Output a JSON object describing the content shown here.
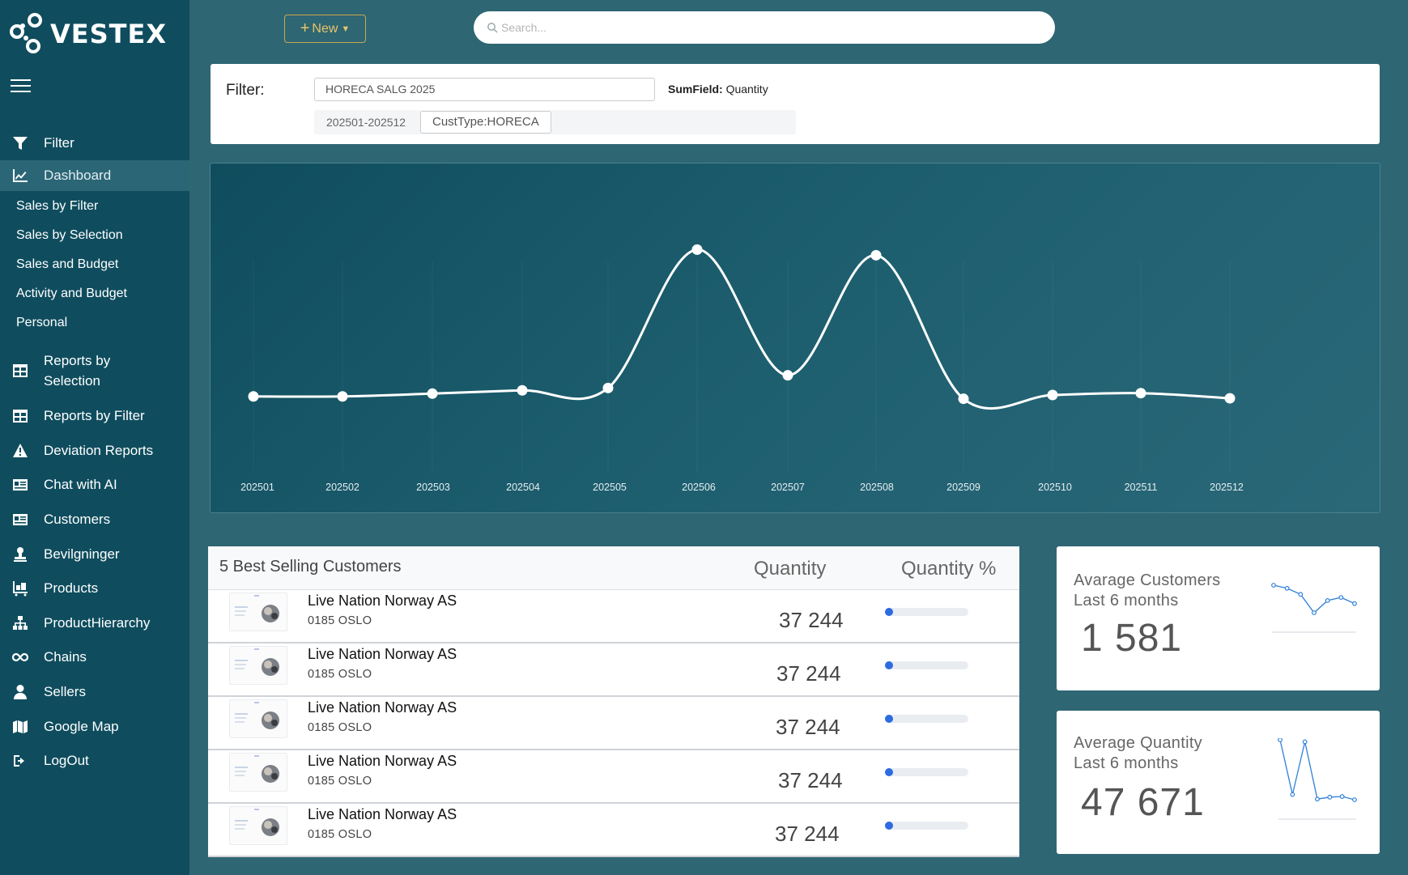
{
  "brand": {
    "name": "VESTEX"
  },
  "sidebar": {
    "items": [
      {
        "label": "Filter",
        "icon": "funnel-icon"
      },
      {
        "label": "Dashboard",
        "icon": "line-chart-icon"
      },
      {
        "label": "Reports by Selection",
        "icon": "table-icon"
      },
      {
        "label": "Reports by Filter",
        "icon": "table-icon"
      },
      {
        "label": "Deviation Reports",
        "icon": "warning-icon"
      },
      {
        "label": "Chat with AI",
        "icon": "id-card-icon"
      },
      {
        "label": "Customers",
        "icon": "id-card-icon"
      },
      {
        "label": "Bevilgninger",
        "icon": "stamp-icon"
      },
      {
        "label": "Products",
        "icon": "pallet-icon"
      },
      {
        "label": "ProductHierarchy",
        "icon": "sitemap-icon"
      },
      {
        "label": "Chains",
        "icon": "infinity-icon"
      },
      {
        "label": "Sellers",
        "icon": "user-icon"
      },
      {
        "label": "Google Map",
        "icon": "map-icon"
      },
      {
        "label": "LogOut",
        "icon": "logout-icon"
      }
    ],
    "dashboard_sub": [
      "Sales by Filter",
      "Sales by Selection",
      "Sales and Budget",
      "Activity and Budget",
      "Personal"
    ]
  },
  "topbar": {
    "new_label": "New",
    "search_placeholder": "Search..."
  },
  "filter": {
    "label": "Filter:",
    "name": "HORECA SALG 2025",
    "sumfield_label": "SumField:",
    "sumfield_value": "Quantity",
    "period": "202501-202512",
    "cust_type": "CustType:HORECA"
  },
  "chart_data": {
    "type": "line",
    "x": [
      "202501",
      "202502",
      "202503",
      "202504",
      "202505",
      "202506",
      "202507",
      "202508",
      "202509",
      "202510",
      "202511",
      "202512"
    ],
    "series": [
      {
        "values": [
          3500,
          3500,
          6500,
          10000,
          12500,
          160000,
          26000,
          154000,
          1000,
          5000,
          7000,
          1500
        ]
      }
    ],
    "ylim": [
      -20000,
      200000
    ],
    "grid": false,
    "legend": "none",
    "line_color": "#ffffff"
  },
  "best_sellers": {
    "title": "5 Best Selling Customers",
    "col_quantity": "Quantity",
    "col_quantity_pct": "Quantity %",
    "rows": [
      {
        "name": "Live Nation Norway AS",
        "city": "0185 OSLO",
        "quantity": "37 244",
        "pct": 0.08
      },
      {
        "name": "Live Nation Norway AS",
        "city": "0185 OSLO",
        "quantity": "37 244",
        "pct": 0.08
      },
      {
        "name": "Live Nation Norway AS",
        "city": "0185 OSLO",
        "quantity": "37 244",
        "pct": 0.08
      },
      {
        "name": "Live Nation Norway AS",
        "city": "0185 OSLO",
        "quantity": "37 244",
        "pct": 0.08
      },
      {
        "name": "Live Nation Norway AS",
        "city": "0185 OSLO",
        "quantity": "37 244",
        "pct": 0.08
      }
    ]
  },
  "stats": {
    "avg_customers": {
      "title_line1": "Avarage Customers",
      "title_line2": "Last 6 months",
      "value": "1 581",
      "spark": [
        1700,
        1680,
        1640,
        1520,
        1600,
        1620,
        1580
      ]
    },
    "avg_quantity": {
      "title_line1": "Average Quantity",
      "title_line2": "Last 6 months",
      "value": "47 671",
      "spark": [
        95000,
        10000,
        92000,
        3000,
        6000,
        7000,
        2000
      ]
    }
  },
  "colors": {
    "sidebar": "#0f4d5e",
    "background": "#2f6673",
    "accent": "#e7c46a",
    "bar_fill": "#2d6be0",
    "spark": "#2f7fd6"
  }
}
